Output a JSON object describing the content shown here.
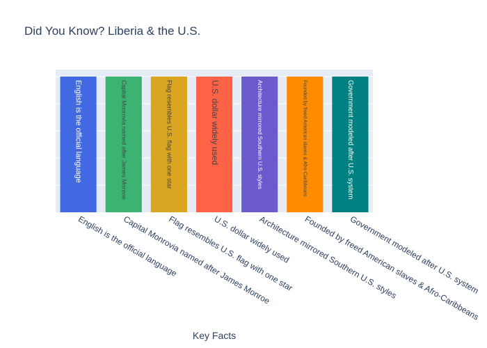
{
  "chart_data": {
    "type": "bar",
    "title": "Did You Know? Liberia & the U.S.",
    "xlabel": "Key Facts",
    "ylabel": "",
    "ylim": [
      0,
      1
    ],
    "grid": true,
    "categories": [
      "English is the official language",
      "Capital Monrovia named after James Monroe",
      "Flag resembles U.S. flag with one star",
      "U.S. dollar widely used",
      "Architecture mirrored Southern U.S. styles",
      "Founded by freed American slaves & Afro-Caribbeans",
      "Government modeled after U.S. system"
    ],
    "values": [
      1,
      1,
      1,
      1,
      1,
      1,
      1
    ],
    "bar_labels": [
      "English is the official language",
      "Capital Monrovia named after James Monroe",
      "Flag resembles U.S. flag with one star",
      "U.S. dollar widely used",
      "Architecture mirrored Southern U.S. styles",
      "Founded by freed American slaves & Afro-Caribbeans",
      "Government modeled after U.S. system"
    ],
    "colors": [
      "#4169E1",
      "#3CB371",
      "#DAA520",
      "#FF6347",
      "#6A5ACD",
      "#FF8C00",
      "#008080"
    ],
    "label_colors": [
      "#ffffff",
      "#444444",
      "#444444",
      "#444444",
      "#ffffff",
      "#444444",
      "#ffffff"
    ]
  }
}
